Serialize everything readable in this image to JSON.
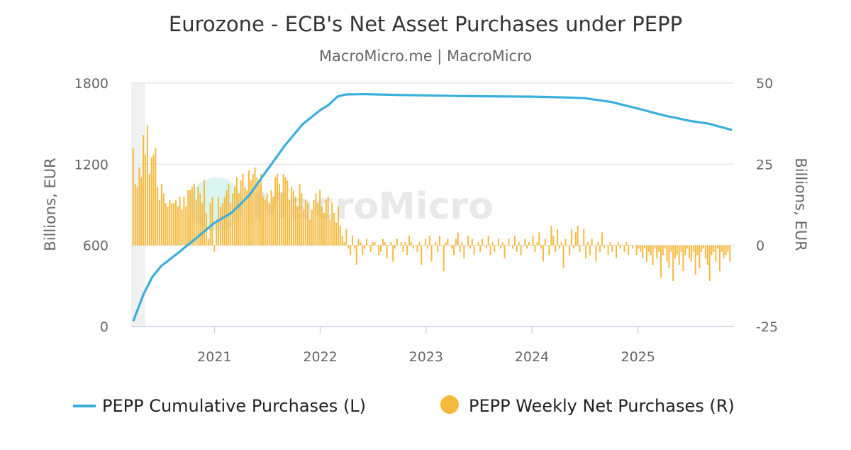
{
  "chart_data": {
    "type": "bar+line",
    "title": "Eurozone - ECB's Net Asset Purchases under PEPP",
    "subtitle": "MacroMicro.me | MacroMicro",
    "watermark": "MacroMicro",
    "x_axis": {
      "type": "date",
      "ticks": [
        "2021",
        "2022",
        "2023",
        "2024",
        "2025"
      ],
      "range": [
        "2020-03-20",
        "2025-11-28"
      ]
    },
    "y_left": {
      "label": "Billions, EUR",
      "range": [
        0,
        1800
      ],
      "ticks": [
        "0",
        "600",
        "1200",
        "1800"
      ]
    },
    "y_right": {
      "label": "Billions, EUR",
      "range": [
        -25,
        50
      ],
      "ticks": [
        "-25",
        "0",
        "25",
        "50"
      ]
    },
    "grid": true,
    "legend_position": "bottom",
    "colors": {
      "line": "#3aafdc",
      "bars": "#f5b93e",
      "grid": "#e6e6e6",
      "band": "#f0f2f2"
    },
    "series": [
      {
        "name": "PEPP Cumulative Purchases (L)",
        "type": "line",
        "axis": "left",
        "points": [
          [
            "2020-03-27",
            40
          ],
          [
            "2020-05-01",
            236
          ],
          [
            "2020-06-01",
            367
          ],
          [
            "2020-07-01",
            446
          ],
          [
            "2020-09-01",
            550
          ],
          [
            "2020-11-01",
            656
          ],
          [
            "2021-01-01",
            766
          ],
          [
            "2021-03-01",
            840
          ],
          [
            "2021-05-01",
            970
          ],
          [
            "2021-07-01",
            1154
          ],
          [
            "2021-09-01",
            1338
          ],
          [
            "2021-11-01",
            1495
          ],
          [
            "2022-01-01",
            1600
          ],
          [
            "2022-02-01",
            1642
          ],
          [
            "2022-03-01",
            1700
          ],
          [
            "2022-04-01",
            1716
          ],
          [
            "2022-06-01",
            1718
          ],
          [
            "2022-10-01",
            1712
          ],
          [
            "2023-01-01",
            1708
          ],
          [
            "2023-06-01",
            1703
          ],
          [
            "2024-01-01",
            1700
          ],
          [
            "2024-04-01",
            1695
          ],
          [
            "2024-07-01",
            1688
          ],
          [
            "2024-10-01",
            1660
          ],
          [
            "2025-01-01",
            1611
          ],
          [
            "2025-04-01",
            1560
          ],
          [
            "2025-07-01",
            1520
          ],
          [
            "2025-09-01",
            1500
          ],
          [
            "2025-11-21",
            1453
          ]
        ]
      },
      {
        "name": "PEPP Weekly Net Purchases (R)",
        "type": "bar",
        "axis": "right",
        "start": "2020-03-27",
        "frequency": "weekly",
        "values": [
          30,
          19,
          18,
          24,
          21,
          34,
          28,
          37,
          22,
          27,
          28,
          30,
          18,
          14,
          19,
          16,
          13,
          12,
          14,
          13,
          13,
          14,
          12,
          15,
          11,
          15,
          12,
          17,
          17,
          18,
          19,
          14,
          18,
          16,
          13,
          20,
          10,
          2,
          13,
          15,
          -2,
          8,
          15,
          12,
          13,
          15,
          17,
          19,
          13,
          16,
          18,
          21,
          16,
          20,
          22,
          18,
          17,
          23,
          20,
          22,
          24,
          21,
          19,
          22,
          15,
          14,
          16,
          13,
          17,
          15,
          21,
          22,
          19,
          16,
          22,
          21,
          20,
          14,
          18,
          17,
          15,
          12,
          19,
          16,
          11,
          14,
          13,
          8,
          11,
          14,
          16,
          13,
          17,
          12,
          10,
          14,
          15,
          8,
          13,
          10,
          7,
          12,
          6,
          3,
          1,
          5,
          -1,
          -3,
          3,
          -1,
          -6,
          2,
          1,
          -3,
          -1,
          2,
          0,
          -2,
          1,
          1,
          0,
          -3,
          -2,
          2,
          1,
          -4,
          0,
          1,
          -5,
          -1,
          2,
          0,
          1,
          -2,
          1,
          -3,
          3,
          1,
          -1,
          0,
          -2,
          1,
          -6,
          0,
          2,
          -1,
          3,
          -5,
          0,
          1,
          -2,
          3,
          0,
          -8,
          1,
          2,
          0,
          -1,
          -3,
          2,
          4,
          -2,
          1,
          -4,
          0,
          3,
          -1,
          2,
          -3,
          0,
          1,
          -2,
          2,
          0,
          -1,
          3,
          -3,
          1,
          -2,
          0,
          2,
          -1,
          1,
          -4,
          0,
          2,
          0,
          -1,
          3,
          -2,
          1,
          -3,
          0,
          2,
          -1,
          1,
          0,
          3,
          -2,
          1,
          4,
          -1,
          -5,
          2,
          0,
          -3,
          6,
          3,
          -2,
          5,
          -1,
          1,
          -7,
          2,
          0,
          -3,
          5,
          -1,
          4,
          6,
          -2,
          0,
          5,
          -4,
          1,
          -3,
          2,
          0,
          -5,
          1,
          -2,
          4,
          -1,
          0,
          -3,
          1,
          -2,
          0,
          -4,
          1,
          -1,
          0,
          -2,
          1,
          -3,
          0,
          -1,
          0,
          -3,
          -1,
          -2,
          -4,
          -1,
          -5,
          -2,
          -3,
          -6,
          -1,
          -4,
          -2,
          -10,
          -3,
          -1,
          -5,
          -7,
          -2,
          -11,
          -4,
          -3,
          -6,
          -2,
          -8,
          -3,
          -1,
          -4,
          -5,
          -2,
          -9,
          -3,
          -7,
          -2,
          -1,
          -4,
          -6,
          -11,
          -3,
          -2,
          -5,
          -1,
          -8,
          -2,
          -4,
          -3,
          -2,
          -5
        ]
      }
    ]
  }
}
